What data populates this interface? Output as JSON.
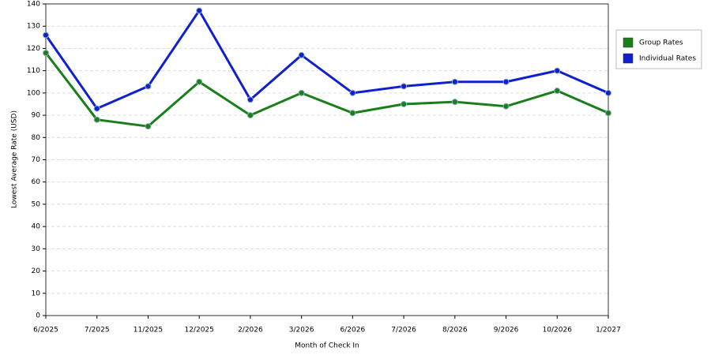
{
  "chart_data": {
    "type": "line",
    "x_label": "Month of Check In",
    "y_label": "Lowest Average Rate (USD)",
    "categories": [
      "6/2025",
      "7/2025",
      "11/2025",
      "12/2025",
      "2/2026",
      "3/2026",
      "6/2026",
      "7/2026",
      "8/2026",
      "9/2026",
      "10/2026",
      "1/2027"
    ],
    "series": [
      {
        "name": "Group Rates",
        "color": "#1a7f1a",
        "values": [
          118,
          88,
          85,
          105,
          90,
          100,
          91,
          95,
          96,
          94,
          101,
          91
        ]
      },
      {
        "name": "Individual Rates",
        "color": "#1020d0",
        "values": [
          126,
          93,
          103,
          137,
          97,
          117,
          100,
          103,
          105,
          105,
          110,
          100
        ]
      }
    ],
    "ylim": [
      0,
      140
    ],
    "yticks": [
      0,
      10,
      20,
      30,
      40,
      50,
      60,
      70,
      80,
      90,
      100,
      110,
      120,
      130,
      140
    ],
    "grid": true,
    "legend": "right"
  }
}
